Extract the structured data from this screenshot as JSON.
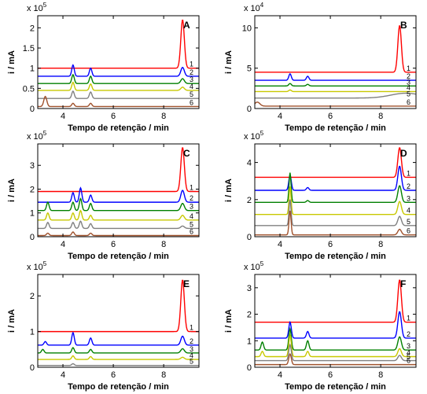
{
  "colors": [
    "#ff0000",
    "#0000ff",
    "#008000",
    "#c8c800",
    "#808080",
    "#a0522d"
  ],
  "chart_data": [
    {
      "type": "line",
      "panel": "A",
      "xlabel": "Tempo de retenção / min",
      "ylabel": "i / mA",
      "exponent_base": "x 10",
      "exponent": "5",
      "xlim": [
        3,
        9.4
      ],
      "ylim": [
        0,
        2.3
      ],
      "xticks": [
        4,
        6,
        8
      ],
      "xtick_labels": [
        "4",
        "6",
        "8"
      ],
      "yticks": [
        0,
        0.5,
        1,
        1.5,
        2
      ],
      "ytick_labels": [
        "0",
        "0.5",
        "1",
        "1.5",
        "2"
      ],
      "series": [
        {
          "name": "1",
          "baseline": 1.0,
          "peaks": [
            [
              8.75,
              1.2,
              0.07
            ]
          ]
        },
        {
          "name": "2",
          "baseline": 0.8,
          "peaks": [
            [
              4.4,
              0.28,
              0.05
            ],
            [
              5.1,
              0.2,
              0.05
            ],
            [
              8.75,
              0.22,
              0.07
            ]
          ]
        },
        {
          "name": "3",
          "baseline": 0.62,
          "peaks": [
            [
              4.4,
              0.22,
              0.05
            ],
            [
              5.1,
              0.18,
              0.05
            ],
            [
              8.75,
              0.12,
              0.07
            ]
          ]
        },
        {
          "name": "4",
          "baseline": 0.45,
          "peaks": [
            [
              4.4,
              0.2,
              0.05
            ],
            [
              5.1,
              0.16,
              0.05
            ],
            [
              8.75,
              0.08,
              0.07
            ]
          ]
        },
        {
          "name": "5",
          "baseline": 0.25,
          "peaks": [
            [
              4.4,
              0.18,
              0.05
            ],
            [
              5.1,
              0.16,
              0.05
            ]
          ]
        },
        {
          "name": "6",
          "baseline": 0.05,
          "peaks": [
            [
              3.3,
              0.25,
              0.06
            ],
            [
              4.4,
              0.08,
              0.05
            ],
            [
              5.1,
              0.08,
              0.05
            ]
          ]
        }
      ]
    },
    {
      "type": "line",
      "panel": "B",
      "xlabel": "Tempo de retenção / min",
      "ylabel": "i / mA",
      "exponent_base": "x 10",
      "exponent": "4",
      "xlim": [
        3,
        9.4
      ],
      "ylim": [
        0,
        11.5
      ],
      "xticks": [
        4,
        6,
        8
      ],
      "xtick_labels": [
        "4",
        "6",
        "8"
      ],
      "yticks": [
        0,
        5,
        10
      ],
      "ytick_labels": [
        "0",
        "5",
        "10"
      ],
      "series": [
        {
          "name": "1",
          "baseline": 4.5,
          "peaks": [
            [
              8.75,
              5.8,
              0.07
            ]
          ]
        },
        {
          "name": "2",
          "baseline": 3.5,
          "peaks": [
            [
              4.4,
              0.8,
              0.05
            ],
            [
              5.1,
              0.5,
              0.05
            ]
          ]
        },
        {
          "name": "3",
          "baseline": 2.8,
          "peaks": [
            [
              4.4,
              0.3,
              0.05
            ],
            [
              5.1,
              0.2,
              0.05
            ]
          ]
        },
        {
          "name": "4",
          "baseline": 2.1,
          "peaks": [
            [
              4.4,
              0.2,
              0.05
            ]
          ]
        },
        {
          "name": "5",
          "baseline": 1.3,
          "peaks": [
            [
              9.0,
              0.6,
              0.6
            ]
          ]
        },
        {
          "name": "6",
          "baseline": 0.3,
          "peaks": [
            [
              3.1,
              0.5,
              0.1
            ]
          ]
        }
      ]
    },
    {
      "type": "line",
      "panel": "C",
      "xlabel": "Tempo de retenção / min",
      "ylabel": "i / mA",
      "exponent_base": "x 10",
      "exponent": "5",
      "xlim": [
        3,
        9.4
      ],
      "ylim": [
        0,
        3.9
      ],
      "xticks": [
        4,
        6,
        8
      ],
      "xtick_labels": [
        "4",
        "6",
        "8"
      ],
      "yticks": [
        0,
        1,
        2,
        3
      ],
      "ytick_labels": [
        "0",
        "1",
        "2",
        "3"
      ],
      "series": [
        {
          "name": "1",
          "baseline": 1.9,
          "peaks": [
            [
              8.75,
              1.85,
              0.07
            ]
          ]
        },
        {
          "name": "2",
          "baseline": 1.45,
          "peaks": [
            [
              4.4,
              0.4,
              0.05
            ],
            [
              4.7,
              0.6,
              0.05
            ],
            [
              5.1,
              0.3,
              0.05
            ],
            [
              8.75,
              0.5,
              0.07
            ]
          ]
        },
        {
          "name": "3",
          "baseline": 1.1,
          "peaks": [
            [
              3.4,
              0.35,
              0.05
            ],
            [
              4.4,
              0.35,
              0.05
            ],
            [
              4.7,
              0.5,
              0.05
            ],
            [
              5.1,
              0.3,
              0.05
            ],
            [
              8.75,
              0.3,
              0.07
            ]
          ]
        },
        {
          "name": "4",
          "baseline": 0.7,
          "peaks": [
            [
              3.4,
              0.3,
              0.05
            ],
            [
              4.4,
              0.3,
              0.05
            ],
            [
              4.7,
              0.4,
              0.05
            ],
            [
              5.1,
              0.2,
              0.05
            ],
            [
              8.75,
              0.2,
              0.07
            ]
          ]
        },
        {
          "name": "5",
          "baseline": 0.35,
          "peaks": [
            [
              3.4,
              0.25,
              0.05
            ],
            [
              4.4,
              0.25,
              0.05
            ],
            [
              4.7,
              0.3,
              0.05
            ],
            [
              5.1,
              0.2,
              0.05
            ],
            [
              8.75,
              0.1,
              0.07
            ]
          ]
        },
        {
          "name": "6",
          "baseline": 0.05,
          "peaks": [
            [
              3.4,
              0.1,
              0.05
            ],
            [
              4.4,
              0.15,
              0.05
            ],
            [
              5.1,
              0.1,
              0.05
            ]
          ]
        }
      ]
    },
    {
      "type": "line",
      "panel": "D",
      "xlabel": "Tempo de retenção / min",
      "ylabel": "i / mA",
      "exponent_base": "x 10",
      "exponent": "5",
      "xlim": [
        3,
        9.4
      ],
      "ylim": [
        0,
        5.0
      ],
      "xticks": [
        4,
        6,
        8
      ],
      "xtick_labels": [
        "4",
        "6",
        "8"
      ],
      "yticks": [
        0,
        2,
        4
      ],
      "ytick_labels": [
        "0",
        "2",
        "4"
      ],
      "series": [
        {
          "name": "1",
          "baseline": 3.2,
          "peaks": [
            [
              8.75,
              1.6,
              0.07
            ]
          ]
        },
        {
          "name": "2",
          "baseline": 2.5,
          "peaks": [
            [
              4.4,
              0.8,
              0.05
            ],
            [
              5.1,
              0.15,
              0.05
            ],
            [
              8.75,
              1.3,
              0.07
            ]
          ]
        },
        {
          "name": "3",
          "baseline": 1.85,
          "peaks": [
            [
              4.4,
              1.6,
              0.04
            ],
            [
              5.1,
              0.1,
              0.05
            ],
            [
              8.75,
              0.9,
              0.07
            ]
          ]
        },
        {
          "name": "4",
          "baseline": 1.2,
          "peaks": [
            [
              4.4,
              1.5,
              0.04
            ],
            [
              8.75,
              0.7,
              0.07
            ]
          ]
        },
        {
          "name": "5",
          "baseline": 0.6,
          "peaks": [
            [
              4.4,
              1.4,
              0.04
            ],
            [
              8.75,
              0.5,
              0.07
            ]
          ]
        },
        {
          "name": "6",
          "baseline": 0.1,
          "peaks": [
            [
              4.4,
              1.3,
              0.04
            ],
            [
              8.75,
              0.3,
              0.07
            ]
          ]
        }
      ]
    },
    {
      "type": "line",
      "panel": "E",
      "xlabel": "Tempo de retenção / min",
      "ylabel": "i / mA",
      "exponent_base": "x 10",
      "exponent": "5",
      "xlim": [
        3,
        9.4
      ],
      "ylim": [
        0,
        2.6
      ],
      "xticks": [
        4,
        6,
        8
      ],
      "xtick_labels": [
        "4",
        "6",
        "8"
      ],
      "yticks": [
        0,
        1,
        2
      ],
      "ytick_labels": [
        "0",
        "1",
        "2"
      ],
      "series": [
        {
          "name": "1",
          "baseline": 1.0,
          "peaks": [
            [
              8.75,
              1.45,
              0.07
            ]
          ]
        },
        {
          "name": "2",
          "baseline": 0.62,
          "peaks": [
            [
              3.3,
              0.1,
              0.05
            ],
            [
              4.4,
              0.35,
              0.05
            ],
            [
              5.1,
              0.2,
              0.05
            ],
            [
              8.75,
              0.25,
              0.07
            ]
          ]
        },
        {
          "name": "3",
          "baseline": 0.4,
          "peaks": [
            [
              3.2,
              0.1,
              0.05
            ],
            [
              4.4,
              0.15,
              0.05
            ],
            [
              5.1,
              0.1,
              0.05
            ],
            [
              8.75,
              0.12,
              0.07
            ]
          ]
        },
        {
          "name": "4",
          "baseline": 0.22,
          "peaks": [
            [
              4.4,
              0.1,
              0.05
            ],
            [
              5.1,
              0.08,
              0.05
            ],
            [
              8.75,
              0.06,
              0.07
            ]
          ]
        },
        {
          "name": "5",
          "baseline": 0.05,
          "peaks": [
            [
              4.4,
              0.05,
              0.05
            ]
          ]
        }
      ]
    },
    {
      "type": "line",
      "panel": "F",
      "xlabel": "Tempo de retenção / min",
      "ylabel": "i / mA",
      "exponent_base": "x 10",
      "exponent": "5",
      "xlim": [
        3,
        9.4
      ],
      "ylim": [
        0,
        3.5
      ],
      "xticks": [
        4,
        6,
        8
      ],
      "xtick_labels": [
        "4",
        "6",
        "8"
      ],
      "yticks": [
        0,
        1,
        2,
        3
      ],
      "ytick_labels": [
        "0",
        "1",
        "2",
        "3"
      ],
      "series": [
        {
          "name": "1",
          "baseline": 1.7,
          "peaks": [
            [
              8.75,
              1.6,
              0.07
            ]
          ]
        },
        {
          "name": "2",
          "baseline": 1.1,
          "peaks": [
            [
              4.4,
              0.6,
              0.05
            ],
            [
              5.1,
              0.25,
              0.05
            ],
            [
              8.75,
              1.0,
              0.07
            ]
          ]
        },
        {
          "name": "3",
          "baseline": 0.65,
          "peaks": [
            [
              3.3,
              0.3,
              0.05
            ],
            [
              4.4,
              0.8,
              0.05
            ],
            [
              5.1,
              0.35,
              0.05
            ],
            [
              8.75,
              0.5,
              0.07
            ]
          ]
        },
        {
          "name": "4",
          "baseline": 0.4,
          "peaks": [
            [
              3.3,
              0.2,
              0.05
            ],
            [
              4.4,
              0.8,
              0.05
            ],
            [
              5.1,
              0.2,
              0.05
            ],
            [
              8.75,
              0.3,
              0.07
            ]
          ]
        },
        {
          "name": "5",
          "baseline": 0.25,
          "peaks": [
            [
              4.4,
              0.6,
              0.05
            ],
            [
              8.75,
              0.2,
              0.07
            ]
          ]
        },
        {
          "name": "6",
          "baseline": 0.1,
          "peaks": [
            [
              4.4,
              0.4,
              0.05
            ]
          ]
        }
      ]
    }
  ]
}
